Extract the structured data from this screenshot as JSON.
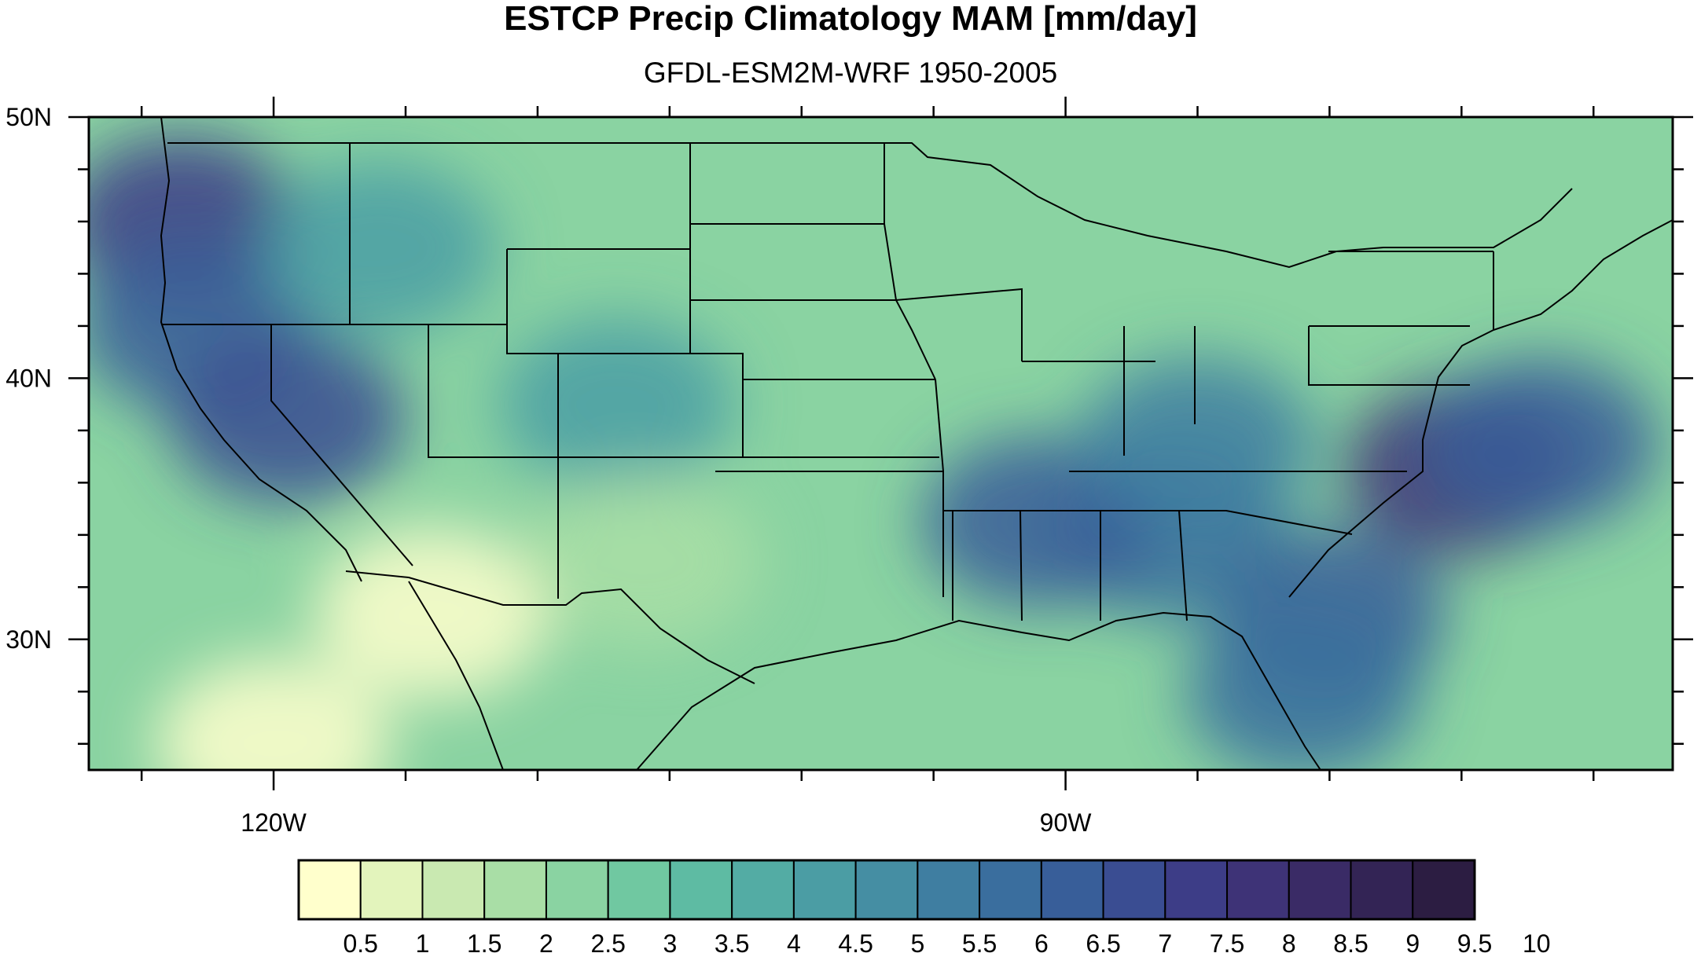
{
  "title": "ESTCP Precip Climatology MAM [mm/day]",
  "subtitle": "GFDL-ESM2M-WRF 1950-2005",
  "map": {
    "lon_range": [
      -127,
      -67
    ],
    "lat_range": [
      25,
      50
    ],
    "lat_labels": [
      {
        "lat": 50,
        "text": "50N"
      },
      {
        "lat": 40,
        "text": "40N"
      },
      {
        "lat": 30,
        "text": "30N"
      }
    ],
    "lon_labels": [
      {
        "lon": -120,
        "text": "120W"
      },
      {
        "lon": -90,
        "text": "90W"
      }
    ],
    "precip_blobs": [
      {
        "lon": -75,
        "lat": 36.5,
        "value": 7.8
      },
      {
        "lon": -72,
        "lat": 37.5,
        "value": 6.5
      },
      {
        "lon": -80,
        "lat": 31,
        "value": 6.2
      },
      {
        "lon": -86,
        "lat": 34,
        "value": 6.0
      },
      {
        "lon": -91,
        "lat": 34.5,
        "value": 6.3
      },
      {
        "lon": -85,
        "lat": 37.5,
        "value": 5.5
      },
      {
        "lon": -81,
        "lat": 28,
        "value": 5.6
      },
      {
        "lon": -123.5,
        "lat": 46,
        "value": 7.2
      },
      {
        "lon": -123,
        "lat": 42,
        "value": 6.5
      },
      {
        "lon": -119.5,
        "lat": 38.5,
        "value": 7.0
      },
      {
        "lon": -116,
        "lat": 45,
        "value": 4.5
      },
      {
        "lon": -107,
        "lat": 39,
        "value": 4.5
      },
      {
        "lon": -114,
        "lat": 31,
        "value": 0.4
      },
      {
        "lon": -120,
        "lat": 26,
        "value": 0.4
      },
      {
        "lon": -106,
        "lat": 33,
        "value": 1.8
      }
    ]
  },
  "colorbar": {
    "colors": [
      "#ffffcc",
      "#e3f4bc",
      "#c9e9b1",
      "#a9dea6",
      "#8ad3a2",
      "#70c8a1",
      "#5ebba3",
      "#53aca4",
      "#4b9da4",
      "#458ea3",
      "#3f7ea1",
      "#3a6e9e",
      "#385e99",
      "#3a4d92",
      "#3d3d87",
      "#3e3377",
      "#3a2b66",
      "#332455",
      "#2c1d42"
    ],
    "labels": [
      "0.5",
      "1",
      "1.5",
      "2",
      "2.5",
      "3",
      "3.5",
      "4",
      "4.5",
      "5",
      "5.5",
      "6",
      "6.5",
      "7",
      "7.5",
      "8",
      "8.5",
      "9",
      "9.5",
      "10"
    ]
  }
}
